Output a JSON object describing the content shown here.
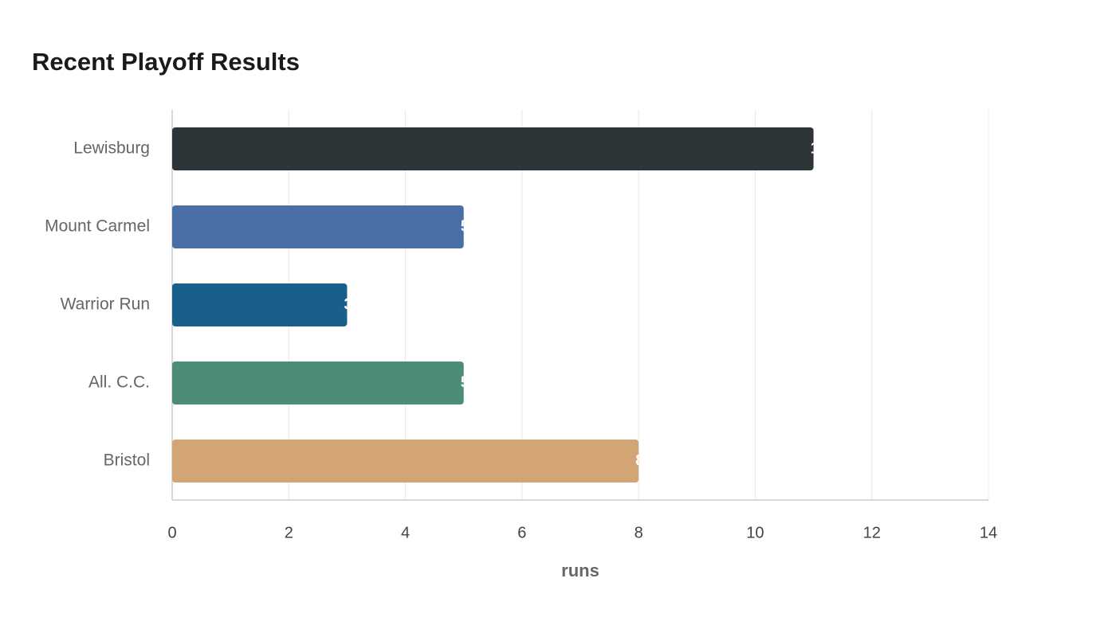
{
  "chart_data": {
    "type": "hbar",
    "title": "Recent Playoff Results",
    "categories": [
      "Lewisburg",
      "Mount Carmel",
      "Warrior Run",
      "All. C.C.",
      "Bristol"
    ],
    "values": [
      11,
      5,
      3,
      5,
      8
    ],
    "colors": [
      "#2e3538",
      "#4a6fa5",
      "#186089",
      "#4e8c7a",
      "#d4a574"
    ],
    "xlabel": "runs",
    "xlim": [
      0,
      14
    ],
    "xticks": [
      0,
      2,
      4,
      6,
      8,
      10,
      12,
      14
    ],
    "grid": true
  }
}
